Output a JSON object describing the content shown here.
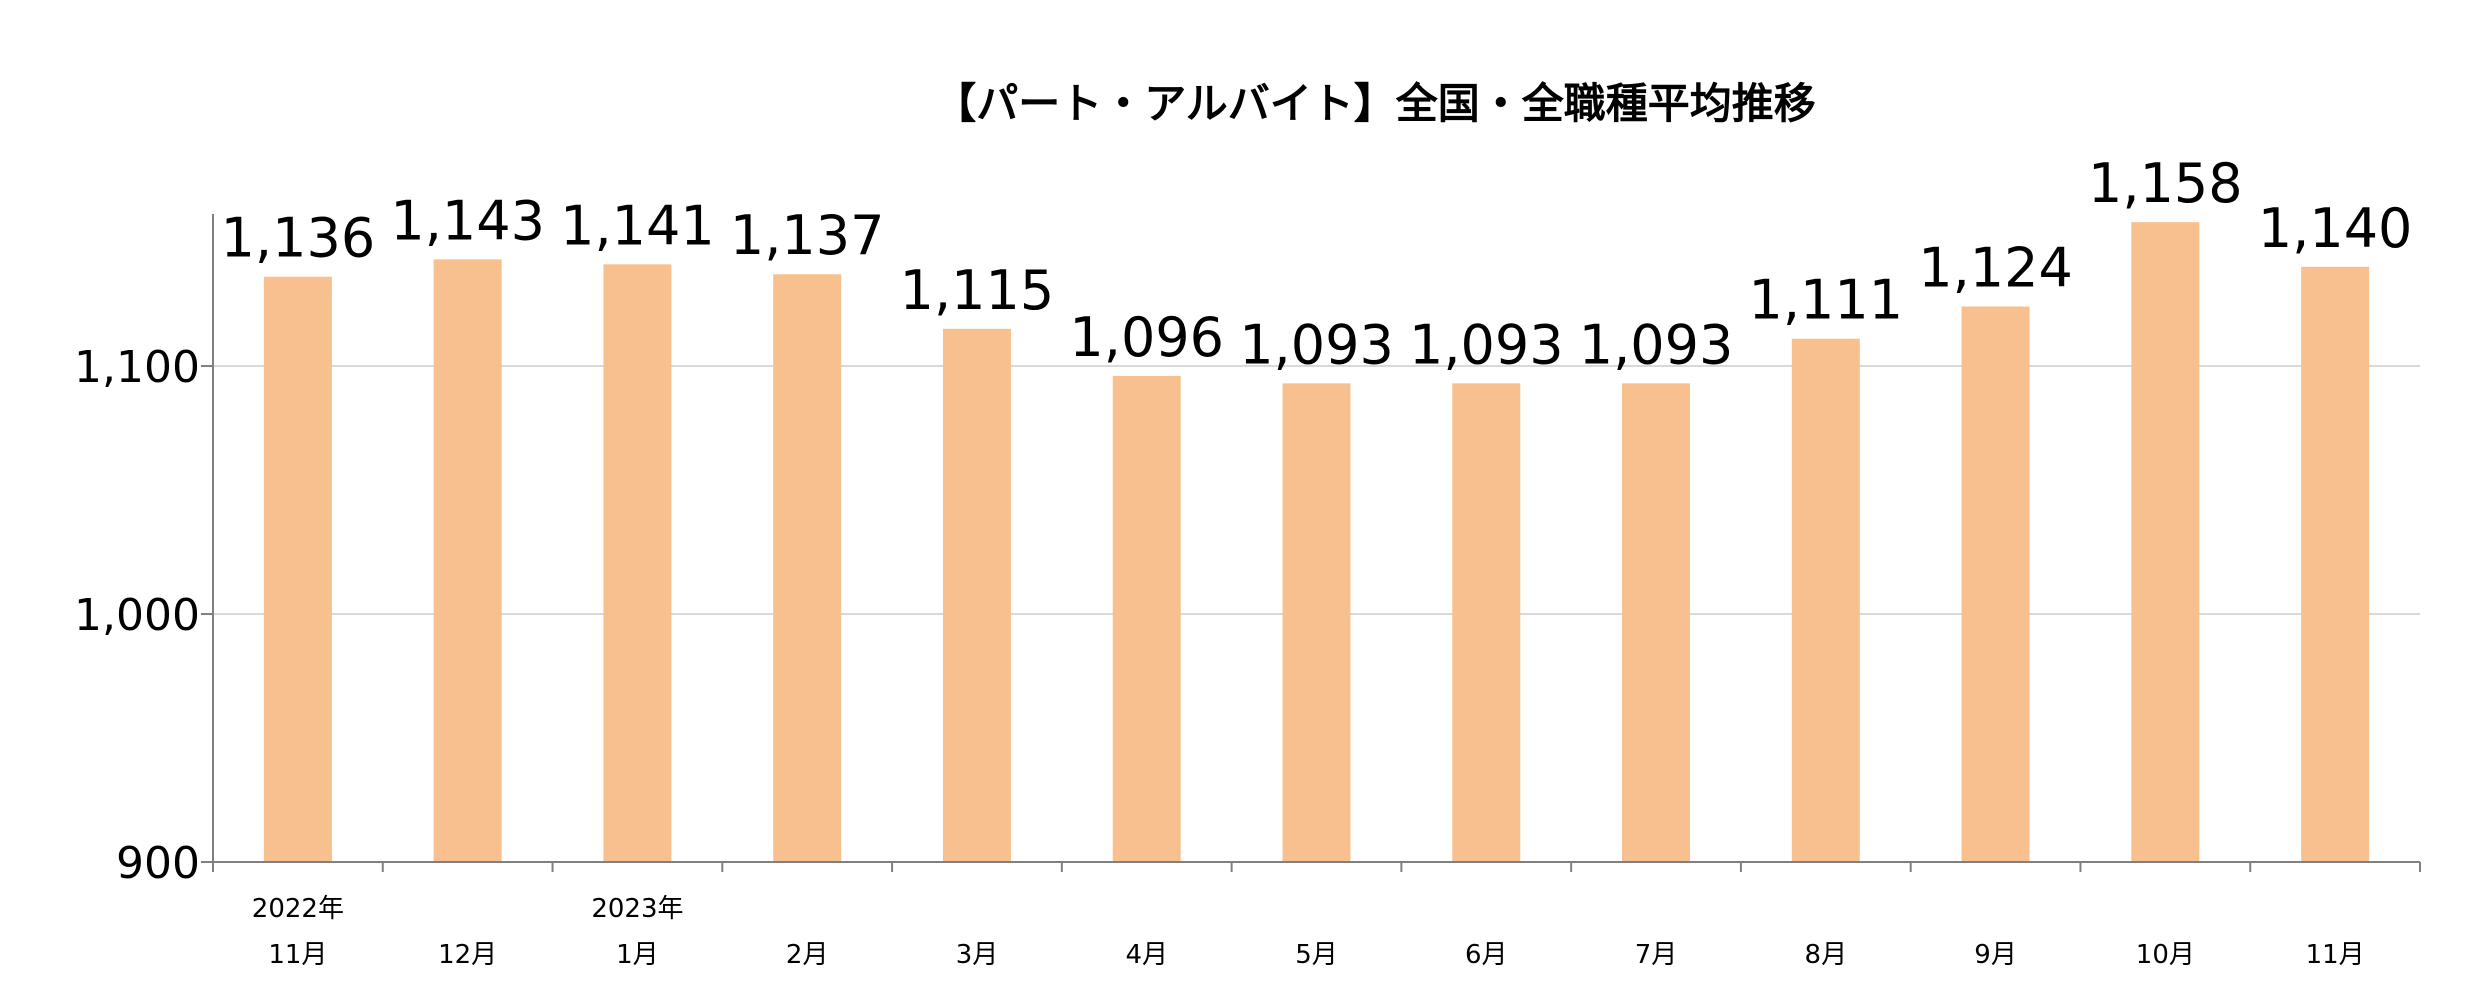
{
  "chart_data": {
    "type": "bar",
    "title": "【パート・アルバイト】全国・全職種平均推移",
    "categories": [
      "11月",
      "12月",
      "1月",
      "2月",
      "3月",
      "4月",
      "5月",
      "6月",
      "7月",
      "8月",
      "9月",
      "10月",
      "11月"
    ],
    "year_labels": [
      "2022年",
      "",
      "2023年",
      "",
      "",
      "",
      "",
      "",
      "",
      "",
      "",
      "",
      ""
    ],
    "values": [
      1136,
      1143,
      1141,
      1137,
      1115,
      1096,
      1093,
      1093,
      1093,
      1111,
      1124,
      1158,
      1140
    ],
    "value_labels": [
      "1,136",
      "1,143",
      "1,141",
      "1,137",
      "1,115",
      "1,096",
      "1,093",
      "1,093",
      "1,093",
      "1,111",
      "1,124",
      "1,158",
      "1,140"
    ],
    "ylim": [
      900,
      1160
    ],
    "yticks": [
      900,
      1000,
      1100
    ],
    "ytick_labels": [
      "900",
      "1,000",
      "1,100"
    ],
    "xlabel": "",
    "ylabel": "",
    "grid": true,
    "legend": "none",
    "bar_color": "#F9C08F",
    "grid_color": "#D9D9D9",
    "axis_color": "#808080"
  }
}
